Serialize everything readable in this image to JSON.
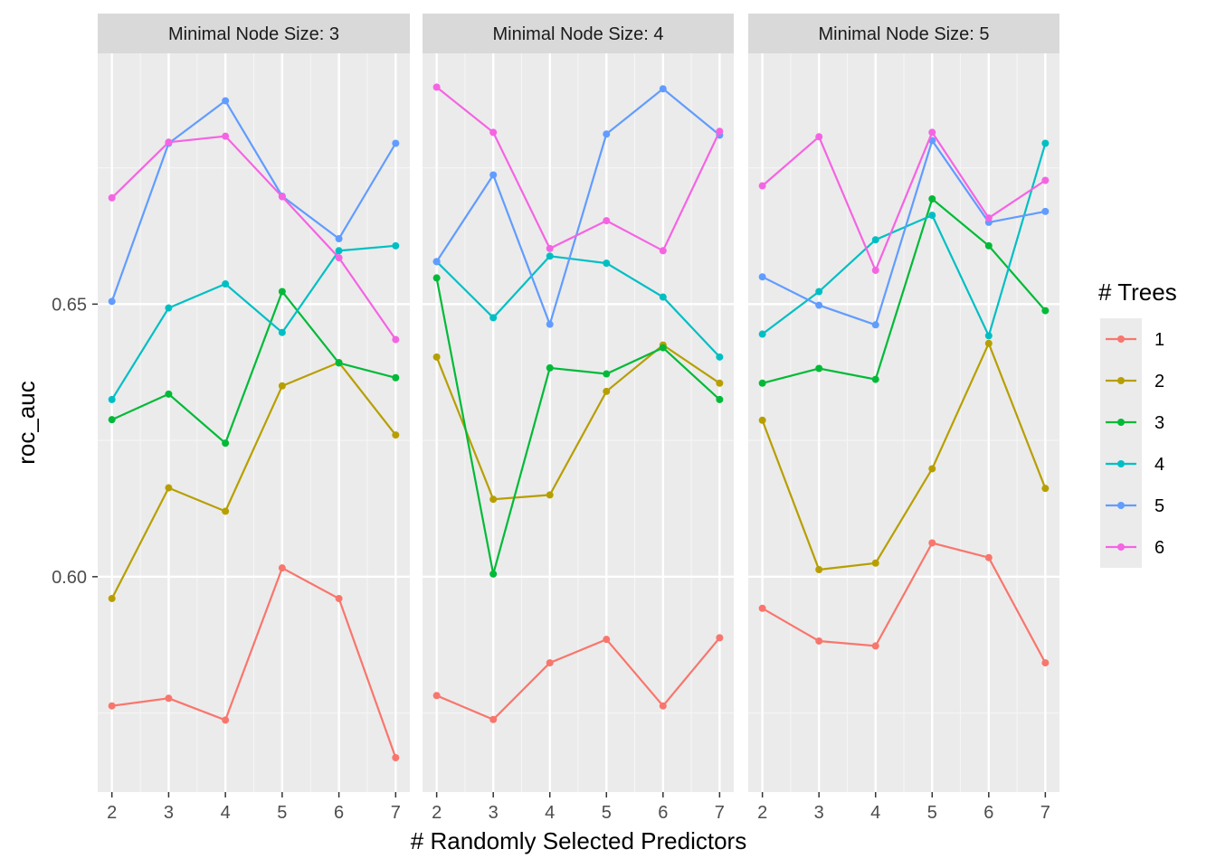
{
  "chart_data": {
    "type": "line",
    "xlabel": "# Randomly Selected Predictors",
    "ylabel": "roc_auc",
    "x": [
      2,
      3,
      4,
      5,
      6,
      7
    ],
    "x_ticks": [
      "2",
      "3",
      "4",
      "5",
      "6",
      "7"
    ],
    "y_ticks": [
      "0.60",
      "0.65"
    ],
    "ylim": [
      0.5605,
      0.696
    ],
    "grid": true,
    "legend": {
      "title": "# Trees",
      "position": "right",
      "entries": [
        "1",
        "2",
        "3",
        "4",
        "5",
        "6"
      ],
      "colors": [
        "#F8766D",
        "#B79F00",
        "#00BA38",
        "#00BFC4",
        "#619CFF",
        "#F564E3"
      ]
    },
    "facets": [
      {
        "label": "Minimal Node Size: 3",
        "series": [
          {
            "name": "1",
            "values": [
              0.5763,
              0.5777,
              0.5737,
              0.6016,
              0.596,
              0.5668
            ]
          },
          {
            "name": "2",
            "values": [
              0.596,
              0.6163,
              0.612,
              0.635,
              0.6393,
              0.626
            ]
          },
          {
            "name": "3",
            "values": [
              0.6288,
              0.6335,
              0.6245,
              0.6523,
              0.6392,
              0.6365
            ]
          },
          {
            "name": "4",
            "values": [
              0.6325,
              0.6493,
              0.6537,
              0.6448,
              0.6598,
              0.6607
            ]
          },
          {
            "name": "5",
            "values": [
              0.6505,
              0.6795,
              0.6873,
              0.6698,
              0.662,
              0.6795
            ]
          },
          {
            "name": "6",
            "values": [
              0.6695,
              0.6797,
              0.6808,
              0.6697,
              0.6585,
              0.6435
            ]
          }
        ]
      },
      {
        "label": "Minimal Node Size: 4",
        "series": [
          {
            "name": "1",
            "values": [
              0.5782,
              0.5738,
              0.5842,
              0.5885,
              0.5763,
              0.5888
            ]
          },
          {
            "name": "2",
            "values": [
              0.6403,
              0.6142,
              0.615,
              0.634,
              0.6425,
              0.6355
            ]
          },
          {
            "name": "3",
            "values": [
              0.6548,
              0.6005,
              0.6383,
              0.6372,
              0.642,
              0.6325
            ]
          },
          {
            "name": "4",
            "values": [
              0.6578,
              0.6475,
              0.6588,
              0.6575,
              0.6513,
              0.6403
            ]
          },
          {
            "name": "5",
            "values": [
              0.6578,
              0.6737,
              0.6463,
              0.6812,
              0.6895,
              0.681
            ]
          },
          {
            "name": "6",
            "values": [
              0.6898,
              0.6815,
              0.6602,
              0.6653,
              0.6598,
              0.6817
            ]
          }
        ]
      },
      {
        "label": "Minimal Node Size: 5",
        "series": [
          {
            "name": "1",
            "values": [
              0.5942,
              0.5882,
              0.5873,
              0.6062,
              0.6035,
              0.5842
            ]
          },
          {
            "name": "2",
            "values": [
              0.6287,
              0.6013,
              0.6025,
              0.6198,
              0.6428,
              0.6162
            ]
          },
          {
            "name": "3",
            "values": [
              0.6355,
              0.6382,
              0.6362,
              0.6693,
              0.6607,
              0.6488
            ]
          },
          {
            "name": "4",
            "values": [
              0.6445,
              0.6523,
              0.6618,
              0.6663,
              0.6442,
              0.6795
            ]
          },
          {
            "name": "5",
            "values": [
              0.655,
              0.6498,
              0.6462,
              0.68,
              0.665,
              0.667
            ]
          },
          {
            "name": "6",
            "values": [
              0.6717,
              0.6807,
              0.6562,
              0.6815,
              0.6658,
              0.6727
            ]
          }
        ]
      }
    ]
  }
}
